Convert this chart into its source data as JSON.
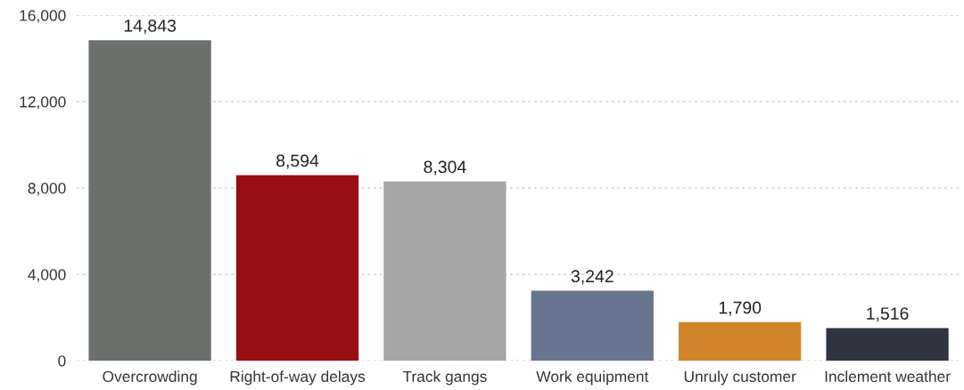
{
  "chart_data": {
    "type": "bar",
    "categories": [
      "Overcrowding",
      "Right-of-way delays",
      "Track gangs",
      "Work equipment",
      "Unruly customer",
      "Inclement weather"
    ],
    "values": [
      14843,
      8594,
      8304,
      3242,
      1790,
      1516
    ],
    "colors": [
      "#6b706d",
      "#990d14",
      "#a6a6a6",
      "#66748f",
      "#d0852a",
      "#2e3440"
    ],
    "ylim": [
      0,
      16000
    ],
    "yticks": [
      {
        "value": 0,
        "label": "0"
      },
      {
        "value": 4000,
        "label": "4,000"
      },
      {
        "value": 8000,
        "label": "8,000"
      },
      {
        "value": 12000,
        "label": "12,000"
      },
      {
        "value": 16000,
        "label": "16,000"
      }
    ],
    "value_labels": [
      "14,843",
      "8,594",
      "8,304",
      "3,242",
      "1,790",
      "1,516"
    ],
    "grid": "y",
    "legend": false
  }
}
